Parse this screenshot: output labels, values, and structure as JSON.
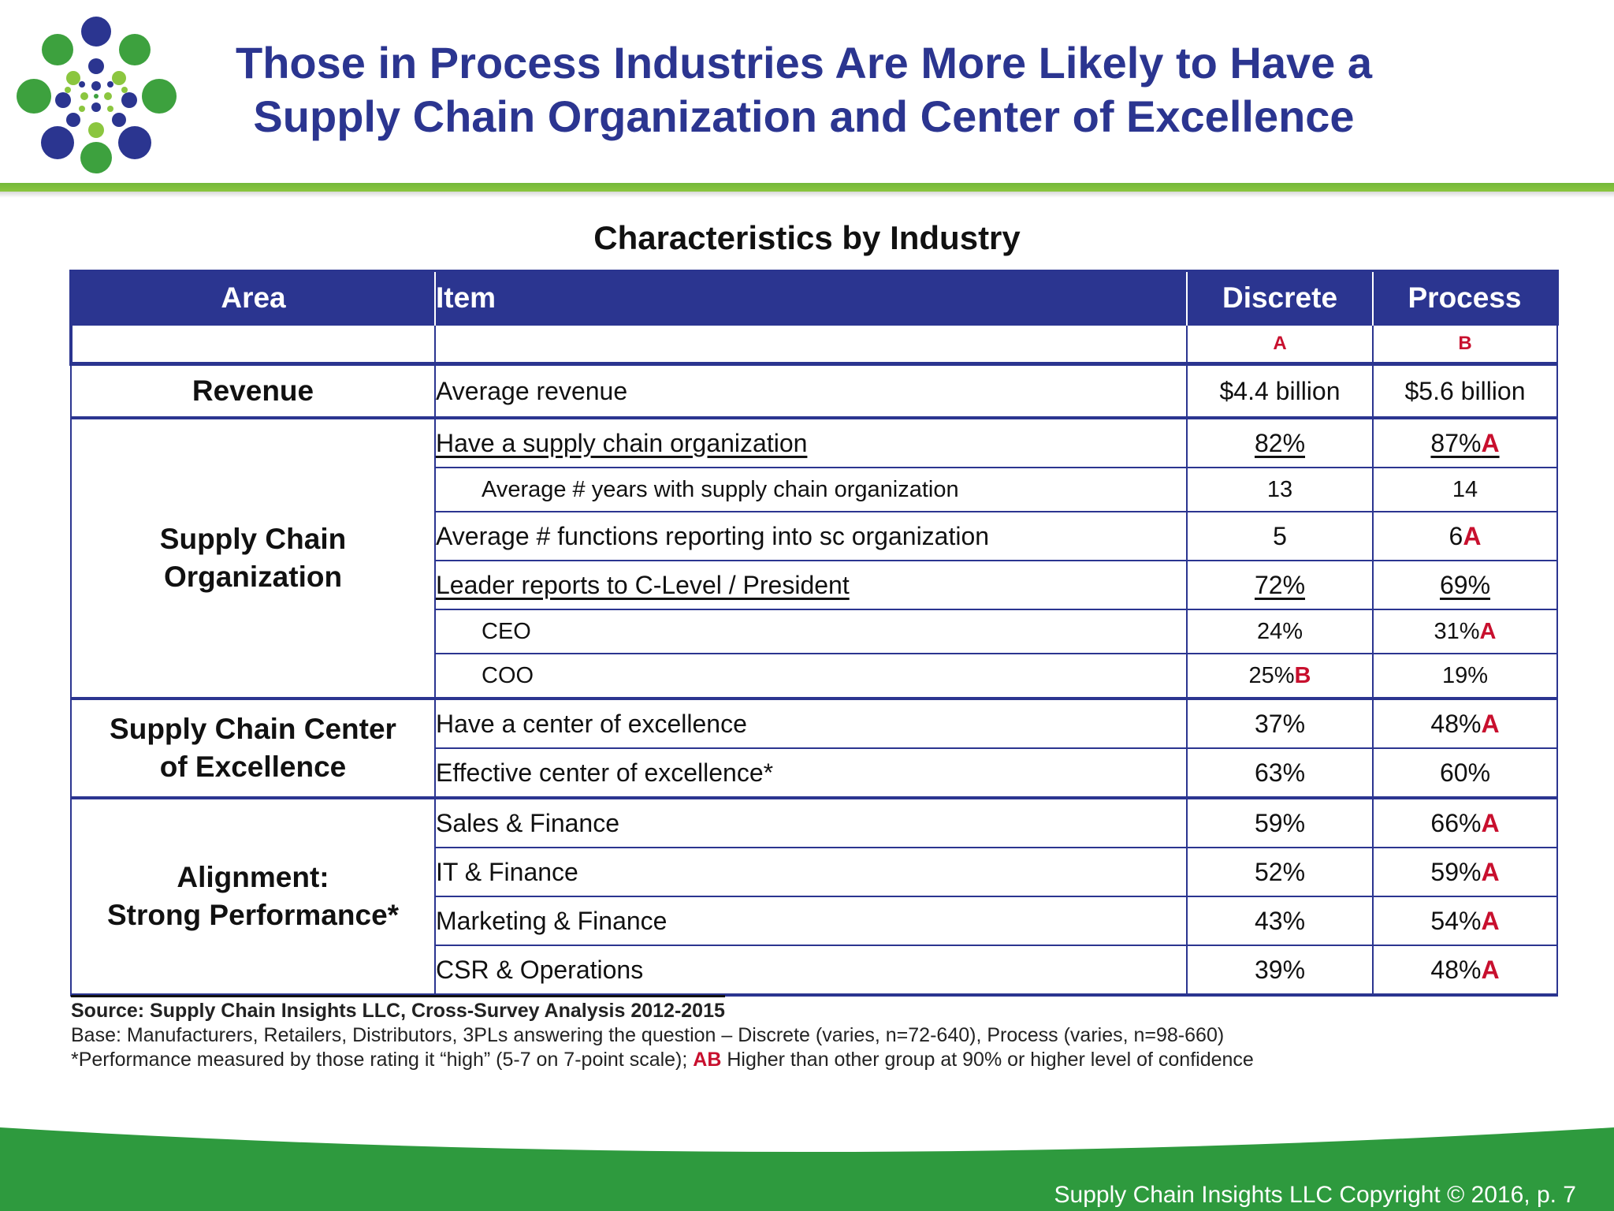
{
  "slide": {
    "title_line1": "Those in Process Industries Are More Likely to Have a",
    "title_line2": "Supply Chain Organization and Center of Excellence",
    "accent_color": "#2b3590",
    "rule_color": "#8bc63f",
    "footer_color": "#2e9a3e"
  },
  "table": {
    "title": "Characteristics by Industry",
    "headers": {
      "area": "Area",
      "item": "Item",
      "discrete": "Discrete",
      "process": "Process"
    },
    "group_letters": {
      "discrete": "A",
      "process": "B"
    },
    "areas": {
      "revenue": "Revenue",
      "sco_line1": "Supply Chain",
      "sco_line2": "Organization",
      "coe_line1": "Supply Chain Center",
      "coe_line2": "of Excellence",
      "align_line1": "Alignment:",
      "align_line2": "Strong Performance*"
    },
    "rows": [
      {
        "item": "Average revenue",
        "discrete": "$4.4 billion",
        "discrete_sig": "",
        "process": "$5.6 billion",
        "process_sig": ""
      },
      {
        "item": "Have a supply chain organization",
        "discrete": "82%",
        "discrete_sig": "",
        "process": "87%",
        "process_sig": "A"
      },
      {
        "item": "Average # years with supply chain organization",
        "discrete": "13",
        "discrete_sig": "",
        "process": "14",
        "process_sig": ""
      },
      {
        "item": "Average # functions reporting into sc organization",
        "discrete": "5",
        "discrete_sig": "",
        "process": "6",
        "process_sig": "A"
      },
      {
        "item": "Leader reports to C-Level / President",
        "discrete": "72%",
        "discrete_sig": "",
        "process": "69%",
        "process_sig": ""
      },
      {
        "item": "CEO",
        "discrete": "24%",
        "discrete_sig": "",
        "process": "31%",
        "process_sig": "A"
      },
      {
        "item": "COO",
        "discrete": "25%",
        "discrete_sig": "B",
        "process": "19%",
        "process_sig": ""
      },
      {
        "item": "Have a center of excellence",
        "discrete": "37%",
        "discrete_sig": "",
        "process": "48%",
        "process_sig": "A"
      },
      {
        "item": "Effective center of excellence*",
        "discrete": "63%",
        "discrete_sig": "",
        "process": "60%",
        "process_sig": ""
      },
      {
        "item": "Sales & Finance",
        "discrete": "59%",
        "discrete_sig": "",
        "process": "66%",
        "process_sig": "A"
      },
      {
        "item": "IT & Finance",
        "discrete": "52%",
        "discrete_sig": "",
        "process": "59%",
        "process_sig": "A"
      },
      {
        "item": "Marketing & Finance",
        "discrete": "43%",
        "discrete_sig": "",
        "process": "54%",
        "process_sig": "A"
      },
      {
        "item": "CSR & Operations",
        "discrete": "39%",
        "discrete_sig": "",
        "process": "48%",
        "process_sig": "A"
      }
    ]
  },
  "notes": {
    "source": "Source:  Supply Chain Insights LLC, Cross-Survey Analysis 2012-2015",
    "base": "Base:  Manufacturers,  Retailers, Distributors, 3PLs answering the question – Discrete (varies, n=72-640), Process (varies, n=98-660)",
    "perf_prefix": "*Performance measured by those rating it “high” (5-7 on 7-point scale);",
    "perf_ab": "AB",
    "perf_suffix": "Higher than other group at 90% or higher level of confidence"
  },
  "footer": {
    "text": "Supply Chain Insights LLC Copyright © 2016, p. 7"
  }
}
